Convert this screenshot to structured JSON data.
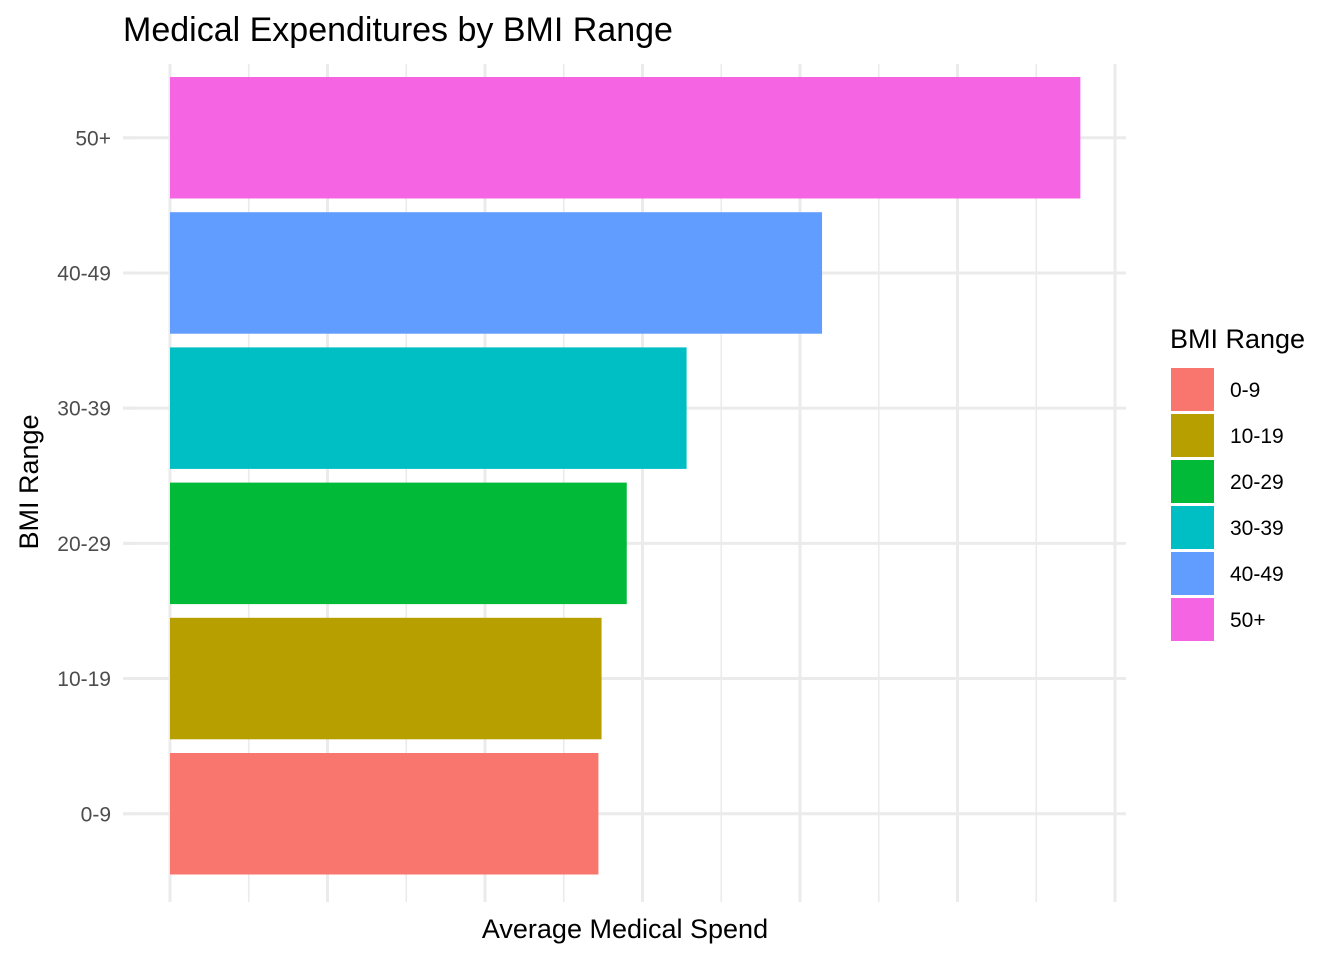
{
  "chart_data": {
    "type": "bar",
    "orientation": "horizontal",
    "title": "Medical Expenditures by BMI Range",
    "xlabel": "Average Medical Spend",
    "ylabel": "BMI Range",
    "categories": [
      "0-9",
      "10-19",
      "20-29",
      "30-39",
      "40-49",
      "50+"
    ],
    "values": [
      13.6,
      13.7,
      14.5,
      16.4,
      20.7,
      28.9
    ],
    "colors": [
      "#F8766D",
      "#B79F00",
      "#00BA38",
      "#00BFC4",
      "#619CFF",
      "#F564E3"
    ],
    "xlim": [
      0,
      30.35
    ],
    "x_tick_labels_shown": false,
    "grid": true,
    "legend": {
      "title": "BMI Range",
      "position": "right",
      "entries": [
        "0-9",
        "10-19",
        "20-29",
        "30-39",
        "40-49",
        "50+"
      ]
    }
  }
}
